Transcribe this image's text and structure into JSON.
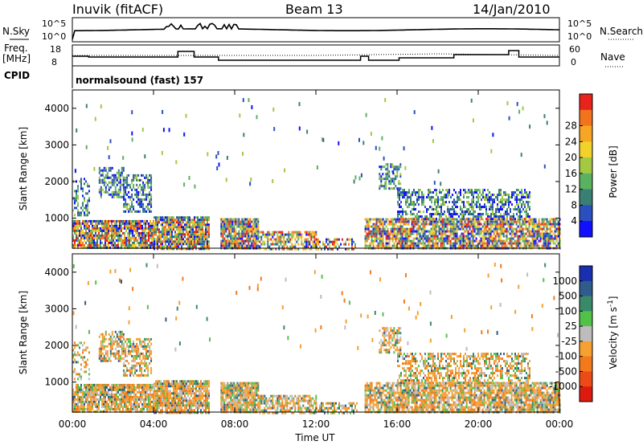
{
  "header": {
    "station": "Inuvik",
    "mode": "(fitACF)",
    "beam": "Beam 13",
    "date": "14/Jan/2010"
  },
  "side_labels": {
    "nsky": "N.Sky",
    "freq": "Freq.",
    "freq_unit": "[MHz]",
    "cpid": "CPID",
    "nsearch": "N.Search",
    "nave": "Nave"
  },
  "cpid_text": "normalsound (fast) 157",
  "noise_panel": {
    "left_ticks": [
      "10^5",
      "10^0"
    ],
    "right_ticks": [
      "10^5",
      "10^0"
    ]
  },
  "freq_panel": {
    "left_ticks": [
      "18",
      "8"
    ],
    "right_ticks": [
      "60",
      "0"
    ]
  },
  "chart_data": [
    {
      "type": "heatmap",
      "name": "power",
      "xlabel": "",
      "ylabel": "Slant Range [km]",
      "xlim": [
        0,
        24
      ],
      "ylim": [
        180,
        4500
      ],
      "yticks": [
        1000,
        2000,
        3000,
        4000
      ],
      "colorbar": {
        "label": "Power [dB]",
        "ticks": [
          "4",
          "8",
          "12",
          "16",
          "20",
          "24",
          "28"
        ],
        "colors": [
          "#1010ff",
          "#2b4fbf",
          "#3a7f73",
          "#5ab160",
          "#a3c844",
          "#f0d22a",
          "#f6a622",
          "#f1731d",
          "#e8231b"
        ]
      }
    },
    {
      "type": "heatmap",
      "name": "velocity",
      "xlabel": "Time UT",
      "ylabel": "Slant Range [km]",
      "xlim": [
        0,
        24
      ],
      "ylim": [
        180,
        4500
      ],
      "xticks": [
        "00:00",
        "04:00",
        "08:00",
        "12:00",
        "16:00",
        "20:00",
        "00:00"
      ],
      "yticks": [
        1000,
        2000,
        3000,
        4000
      ],
      "colorbar": {
        "label": "Velocity [m s^-1]",
        "ticks": [
          "1000",
          "500",
          "100",
          "25",
          "-25",
          "-100",
          "-500",
          "-1000"
        ],
        "colors": [
          "#1a2fb0",
          "#2f5c8c",
          "#3a8a6a",
          "#53c04a",
          "#bdbdbd",
          "#f5a030",
          "#f27a1c",
          "#ea4b17",
          "#dd1a10"
        ]
      }
    }
  ]
}
